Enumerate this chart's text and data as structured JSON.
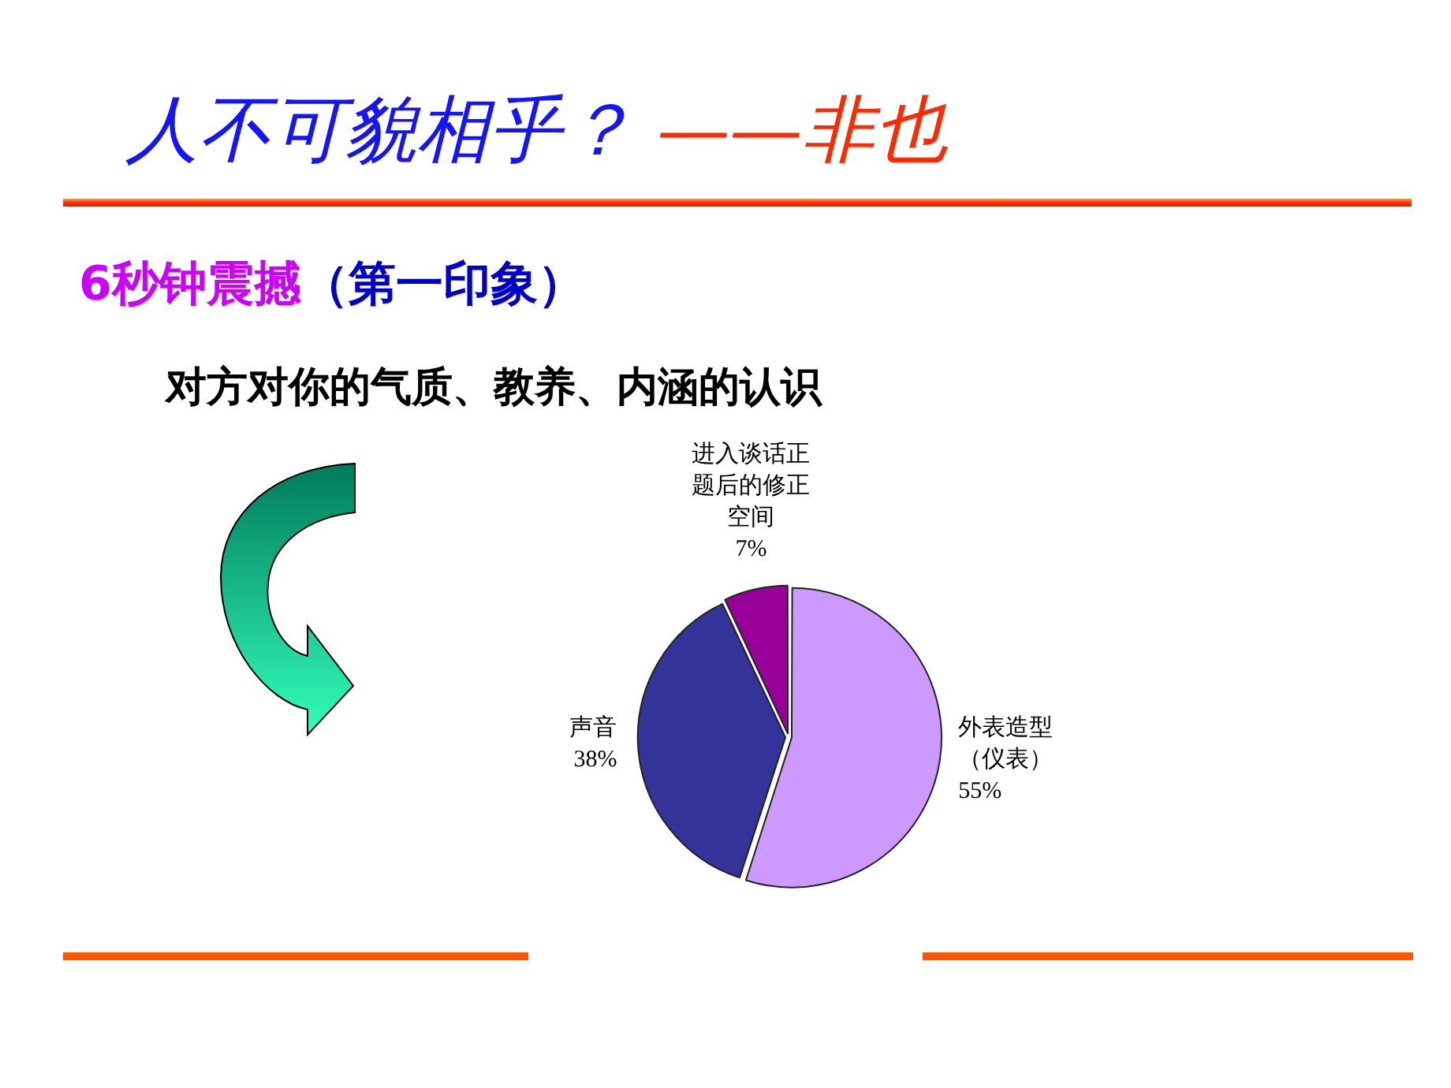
{
  "chart_data": {
    "type": "pie",
    "title": "人不可貌相乎？ ——非也",
    "subtitle": "6秒钟震撼（第一印象）",
    "annotations": [
      "对方对你的气质、教养、内涵的认识"
    ],
    "categories": [
      "外表造型（仪表）",
      "声音",
      "进入谈话正题后的修正空间"
    ],
    "values": [
      55,
      38,
      7
    ],
    "colors": [
      "#cc99ff",
      "#333399",
      "#990099"
    ],
    "value_labels": [
      "55%",
      "38%",
      "7%"
    ]
  }
}
